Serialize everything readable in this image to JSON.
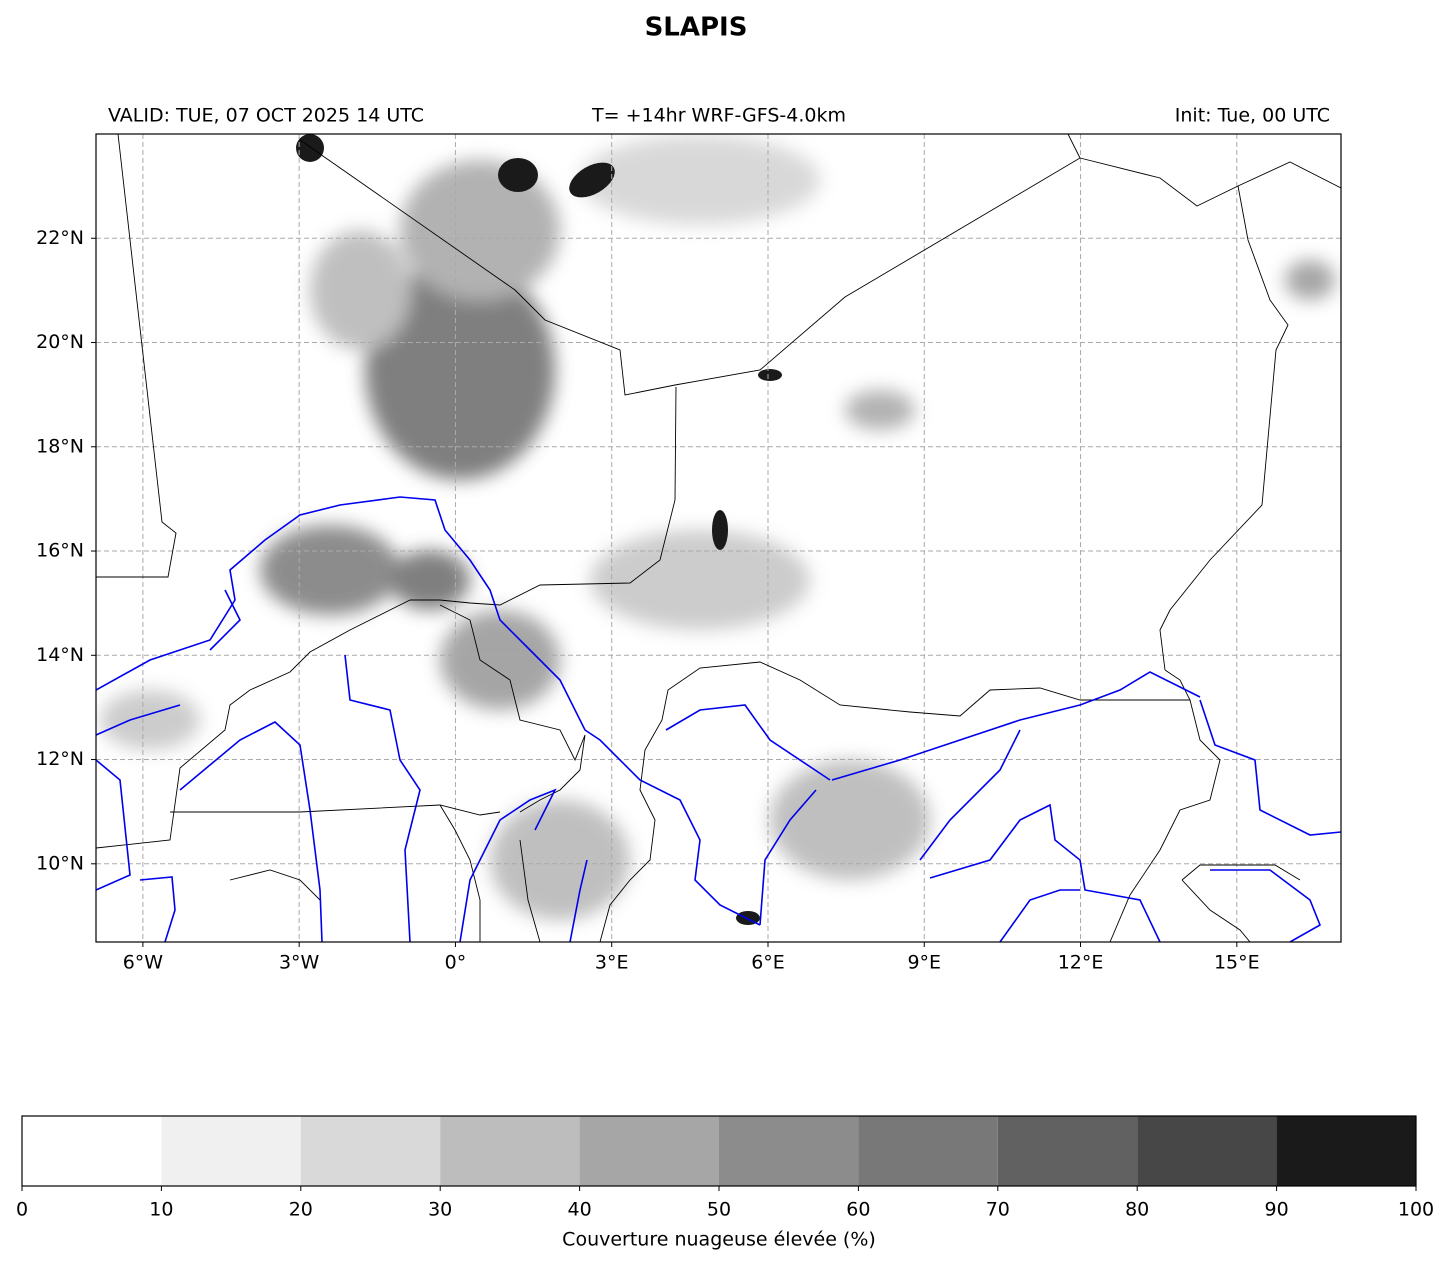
{
  "map": {
    "title": "SLAPIS",
    "valid": "VALID: TUE, 07 OCT 2025 14 UTC",
    "run": "T= +14hr WRF-GFS-4.0km",
    "init": "Init: Tue, 00 UTC",
    "xlim": [
      -6.9,
      17
    ],
    "ylim": [
      8.5,
      24
    ],
    "xticks": [
      {
        "value": -6,
        "label": "6°W"
      },
      {
        "value": -3,
        "label": "3°W"
      },
      {
        "value": 0,
        "label": "0°"
      },
      {
        "value": 3,
        "label": "3°E"
      },
      {
        "value": 6,
        "label": "6°E"
      },
      {
        "value": 9,
        "label": "9°E"
      },
      {
        "value": 12,
        "label": "12°E"
      },
      {
        "value": 15,
        "label": "15°E"
      }
    ],
    "yticks": [
      {
        "value": 10,
        "label": "10°N"
      },
      {
        "value": 12,
        "label": "12°N"
      },
      {
        "value": 14,
        "label": "14°N"
      },
      {
        "value": 16,
        "label": "16°N"
      },
      {
        "value": 18,
        "label": "18°N"
      },
      {
        "value": 20,
        "label": "20°N"
      },
      {
        "value": 22,
        "label": "22°N"
      }
    ],
    "grid": true
  },
  "colorbar": {
    "label": "Couverture nuageuse élevée (%)",
    "lim": [
      0,
      100
    ],
    "ticks": [
      0,
      10,
      20,
      30,
      40,
      50,
      60,
      70,
      80,
      90,
      100
    ],
    "colors": [
      "#ffffff",
      "#f0f0f0",
      "#d9d9d9",
      "#bdbdbd",
      "#a6a6a6",
      "#8c8c8c",
      "#787878",
      "#616161",
      "#474747",
      "#1a1a1a"
    ]
  }
}
